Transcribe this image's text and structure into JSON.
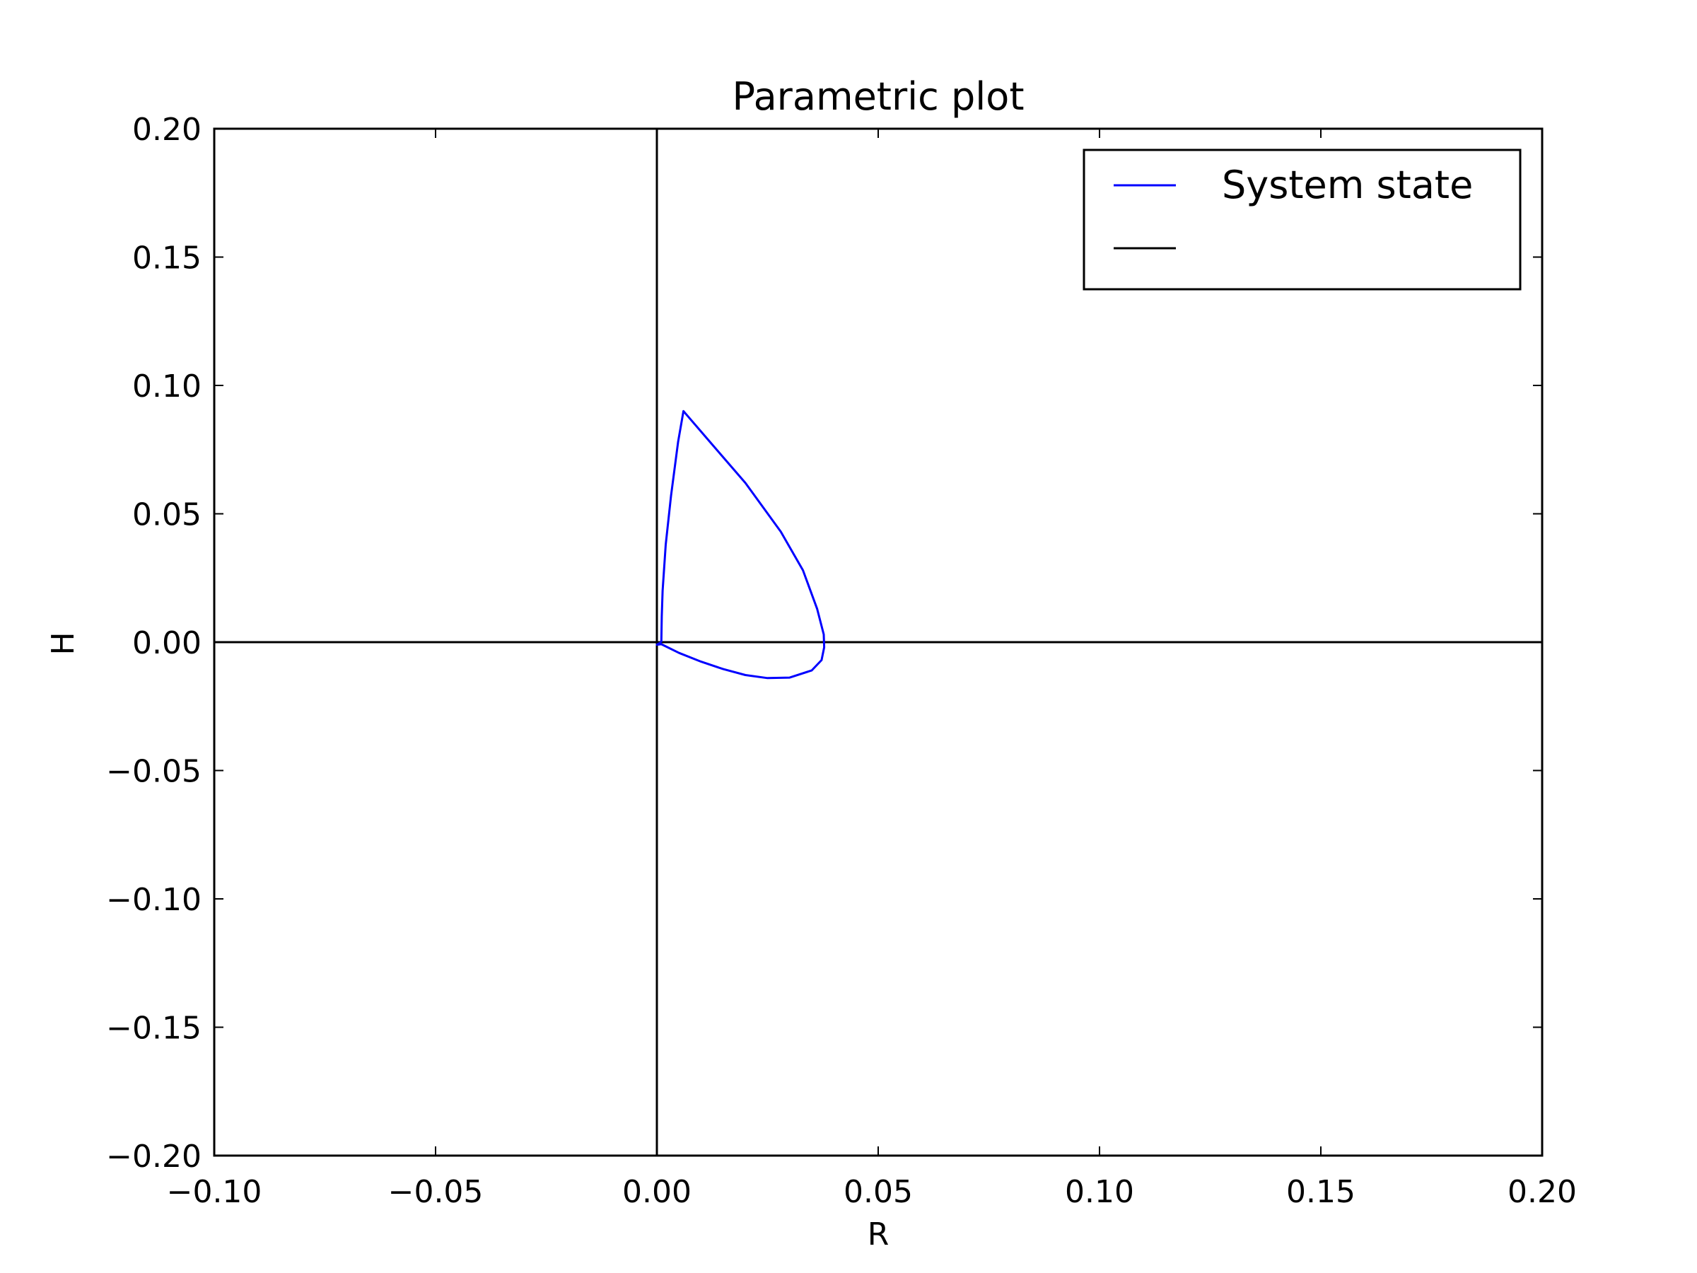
{
  "chart_data": {
    "type": "line",
    "title": "Parametric plot",
    "xlabel": "R",
    "ylabel": "H",
    "xlim": [
      -0.1,
      0.2
    ],
    "ylim": [
      -0.2,
      0.2
    ],
    "xticks": [
      -0.1,
      -0.05,
      0.0,
      0.05,
      0.1,
      0.15,
      0.2
    ],
    "yticks": [
      -0.2,
      -0.15,
      -0.1,
      -0.05,
      0.0,
      0.05,
      0.1,
      0.15,
      0.2
    ],
    "xtick_labels": [
      "−0.10",
      "−0.05",
      "0.00",
      "0.05",
      "0.10",
      "0.15",
      "0.20"
    ],
    "ytick_labels": [
      "−0.20",
      "−0.15",
      "−0.10",
      "−0.05",
      "0.00",
      "0.05",
      "0.10",
      "0.15",
      "0.20"
    ],
    "grid": false,
    "legend_position": "top-right",
    "series": [
      {
        "name": "System state",
        "color": "#0000ff",
        "x": [
          0.001,
          0.0011,
          0.0013,
          0.002,
          0.0032,
          0.0048,
          0.006,
          0.012,
          0.02,
          0.028,
          0.033,
          0.0362,
          0.0377,
          0.0378,
          0.0372,
          0.035,
          0.03,
          0.025,
          0.02,
          0.015,
          0.01,
          0.005,
          0.001,
          0.0,
          0.001
        ],
        "y": [
          0.0,
          0.01,
          0.02,
          0.038,
          0.057,
          0.078,
          0.09,
          0.078,
          0.062,
          0.043,
          0.028,
          0.013,
          0.003,
          -0.002,
          -0.007,
          -0.011,
          -0.0138,
          -0.014,
          -0.0128,
          -0.0105,
          -0.0076,
          -0.0042,
          -0.0008,
          -0.001,
          0.0
        ]
      },
      {
        "name": "",
        "color": "#000000",
        "x": [
          -0.1,
          0.2
        ],
        "y": [
          0.0,
          0.0
        ]
      },
      {
        "name": "",
        "color": "#000000",
        "x": [
          0.0,
          0.0
        ],
        "y": [
          -0.2,
          0.2
        ]
      }
    ],
    "legend": [
      {
        "label": "System state",
        "color": "#0000ff"
      },
      {
        "label": "",
        "color": "#000000"
      }
    ]
  }
}
